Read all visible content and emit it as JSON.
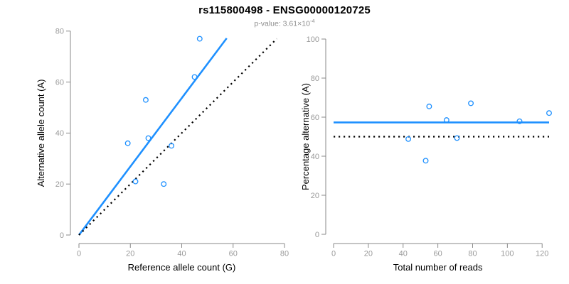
{
  "header": {
    "title": "rs115800498 - ENSG00000120725",
    "pvalue_prefix": "p-value: ",
    "pvalue_base": "3.61×10",
    "pvalue_exponent": "-4"
  },
  "colors": {
    "accent_blue": "#1e90ff",
    "line_black": "#000000",
    "axis_gray": "#898989",
    "tick_label_gray": "#9a9a9a",
    "axis_title_black": "#000000",
    "subtitle_gray": "#8d8d8d"
  },
  "chart_data": [
    {
      "type": "scatter",
      "panel": "left",
      "xlabel": "Reference allele count (G)",
      "ylabel": "Alternative allele count (A)",
      "xlim": [
        0,
        80
      ],
      "ylim": [
        0,
        80
      ],
      "xticks": [
        0,
        20,
        40,
        60,
        80
      ],
      "yticks": [
        0,
        20,
        40,
        60,
        80
      ],
      "grid": false,
      "points": [
        [
          19,
          36
        ],
        [
          22,
          21
        ],
        [
          26,
          53
        ],
        [
          27,
          38
        ],
        [
          33,
          20
        ],
        [
          36,
          35
        ],
        [
          45,
          62
        ],
        [
          47,
          77
        ]
      ],
      "lines": [
        {
          "name": "fit-line",
          "style": "solid",
          "color_key": "accent_blue",
          "x1": 0,
          "y1": 0,
          "x2": 57.5,
          "y2": 77.2
        },
        {
          "name": "identity-line",
          "style": "dotted",
          "color_key": "line_black",
          "x1": 0,
          "y1": 0,
          "x2": 77,
          "y2": 77
        }
      ]
    },
    {
      "type": "scatter",
      "panel": "right",
      "xlabel": "Total number of reads",
      "ylabel": "Percentage alternative (A)",
      "xlim": [
        0,
        124
      ],
      "ylim": [
        0,
        100
      ],
      "xticks": [
        0,
        20,
        40,
        60,
        80,
        100,
        120
      ],
      "yticks": [
        0,
        20,
        40,
        60,
        80,
        100
      ],
      "grid": false,
      "points": [
        [
          43,
          48.8
        ],
        [
          53,
          37.7
        ],
        [
          55,
          65.5
        ],
        [
          65,
          58.5
        ],
        [
          71,
          49.3
        ],
        [
          79,
          67.1
        ],
        [
          107,
          57.9
        ],
        [
          124,
          62.1
        ]
      ],
      "lines": [
        {
          "name": "mean-line",
          "style": "solid",
          "color_key": "accent_blue",
          "x1": 0,
          "y1": 57.3,
          "x2": 124,
          "y2": 57.3
        },
        {
          "name": "null-line",
          "style": "dotted",
          "color_key": "line_black",
          "x1": 0,
          "y1": 50,
          "x2": 124,
          "y2": 50
        }
      ]
    }
  ]
}
